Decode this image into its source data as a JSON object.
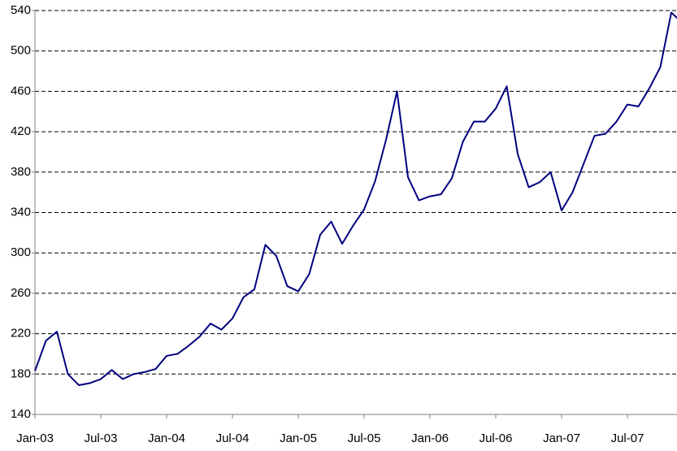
{
  "chart_data": {
    "type": "line",
    "categories": [
      "Jan-03",
      null,
      null,
      null,
      null,
      null,
      "Jul-03",
      null,
      null,
      null,
      null,
      null,
      "Jan-04",
      null,
      null,
      null,
      null,
      null,
      "Jul-04",
      null,
      null,
      null,
      null,
      null,
      "Jan-05",
      null,
      null,
      null,
      null,
      null,
      "Jul-05",
      null,
      null,
      null,
      null,
      null,
      "Jan-06",
      null,
      null,
      null,
      null,
      null,
      "Jul-06",
      null,
      null,
      null,
      null,
      null,
      "Jan-07",
      null,
      null,
      null,
      null,
      null,
      "Jul-07",
      null,
      null,
      null,
      null,
      null
    ],
    "series": [
      {
        "color": "#000080",
        "values": [
          183,
          213,
          222,
          180,
          169,
          171,
          175,
          184,
          175,
          180,
          182,
          185,
          198,
          200,
          208,
          217,
          230,
          224,
          235,
          256,
          264,
          308,
          297,
          267,
          262,
          279,
          318,
          331,
          309,
          327,
          343,
          371,
          412,
          460,
          375,
          352,
          356,
          358,
          374,
          410,
          430,
          430,
          443,
          465,
          398,
          365,
          370,
          380,
          342,
          360,
          388,
          416,
          418,
          430,
          447,
          445,
          463,
          484,
          538,
          528
        ]
      }
    ],
    "ylim": [
      140,
      540
    ],
    "yticks": [
      140,
      180,
      220,
      260,
      300,
      340,
      380,
      420,
      460,
      500,
      540
    ],
    "grid": true
  }
}
